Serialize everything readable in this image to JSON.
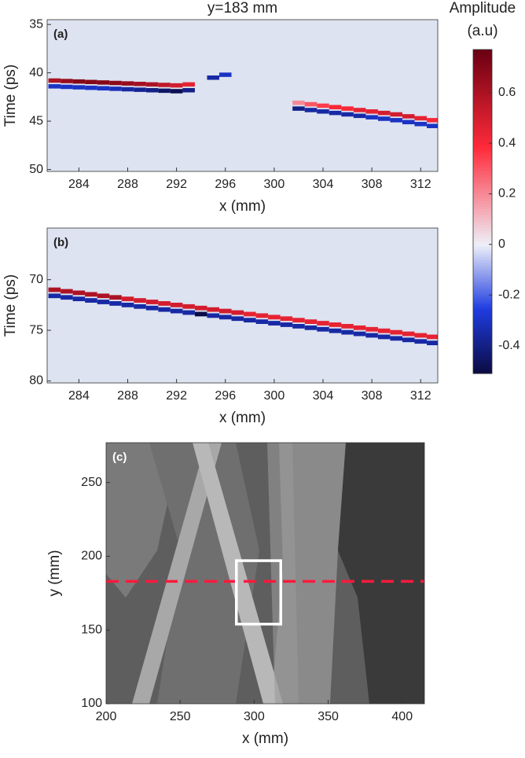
{
  "chart_data": [
    {
      "type": "heatmap",
      "title": "y=183 mm",
      "label": "(a)",
      "xlabel": "x (mm)",
      "ylabel": "Time (ps)",
      "xlim": [
        281.4,
        313.4
      ],
      "ylim": [
        34.5,
        50.2
      ],
      "y_reversed": true,
      "xticks": [
        284,
        288,
        292,
        296,
        300,
        304,
        308,
        312
      ],
      "yticks": [
        35,
        40,
        45,
        50
      ],
      "background_color": "#dde3f0",
      "x": [
        282,
        283,
        284,
        285,
        286,
        287,
        288,
        289,
        290,
        291,
        292,
        293,
        294,
        295,
        296,
        297,
        298,
        299,
        300,
        301,
        302,
        303,
        304,
        305,
        306,
        307,
        308,
        309,
        310,
        311,
        312,
        313
      ],
      "traces": [
        {
          "times": [
            40.8,
            40.85,
            40.9,
            40.95,
            41.0,
            41.05,
            41.1,
            41.15,
            41.2,
            41.25,
            41.3,
            41.2,
            null,
            null,
            null,
            null,
            null,
            null,
            null,
            null,
            43.1,
            43.25,
            43.4,
            43.55,
            43.7,
            43.85,
            44.0,
            44.15,
            44.3,
            44.5,
            44.7,
            44.9
          ],
          "amplitudes": [
            0.6,
            0.65,
            0.7,
            0.7,
            0.7,
            0.68,
            0.65,
            0.62,
            0.6,
            0.55,
            0.5,
            0.45,
            null,
            null,
            null,
            null,
            null,
            null,
            null,
            null,
            0.2,
            0.3,
            0.35,
            0.4,
            0.4,
            0.45,
            0.45,
            0.5,
            0.5,
            0.5,
            0.45,
            0.4
          ]
        },
        {
          "times": [
            41.4,
            41.45,
            41.5,
            41.55,
            41.6,
            41.65,
            41.7,
            41.75,
            41.8,
            41.85,
            41.9,
            41.8,
            null,
            40.5,
            40.2,
            null,
            null,
            null,
            null,
            null,
            43.7,
            43.85,
            44.0,
            44.15,
            44.3,
            44.45,
            44.6,
            44.75,
            44.9,
            45.1,
            45.3,
            45.5
          ],
          "amplitudes": [
            -0.3,
            -0.3,
            -0.3,
            -0.3,
            -0.3,
            -0.32,
            -0.35,
            -0.38,
            -0.4,
            -0.45,
            -0.48,
            -0.4,
            null,
            -0.35,
            -0.3,
            null,
            null,
            null,
            null,
            null,
            -0.4,
            -0.35,
            -0.35,
            -0.35,
            -0.35,
            -0.35,
            -0.3,
            -0.3,
            -0.3,
            -0.3,
            -0.3,
            -0.3
          ]
        }
      ]
    },
    {
      "type": "heatmap",
      "label": "(b)",
      "xlabel": "x (mm)",
      "ylabel": "Time (ps)",
      "xlim": [
        281.4,
        313.4
      ],
      "ylim": [
        64.9,
        80.2
      ],
      "y_reversed": true,
      "xticks": [
        284,
        288,
        292,
        296,
        300,
        304,
        308,
        312
      ],
      "yticks": [
        70,
        75,
        80
      ],
      "background_color": "#dde3f0",
      "x": [
        282,
        283,
        284,
        285,
        286,
        287,
        288,
        289,
        290,
        291,
        292,
        293,
        294,
        295,
        296,
        297,
        298,
        299,
        300,
        301,
        302,
        303,
        304,
        305,
        306,
        307,
        308,
        309,
        310,
        311,
        312,
        313
      ],
      "traces": [
        {
          "times": [
            71.0,
            71.15,
            71.3,
            71.45,
            71.6,
            71.75,
            71.9,
            72.05,
            72.2,
            72.35,
            72.5,
            72.65,
            72.8,
            72.95,
            73.1,
            73.25,
            73.4,
            73.55,
            73.7,
            73.85,
            74.0,
            74.15,
            74.3,
            74.45,
            74.6,
            74.75,
            74.9,
            75.05,
            75.2,
            75.35,
            75.5,
            75.65
          ],
          "amplitudes": [
            0.6,
            0.6,
            0.6,
            0.6,
            0.6,
            0.6,
            0.5,
            0.5,
            0.5,
            0.5,
            0.5,
            0.5,
            0.5,
            0.5,
            0.5,
            0.5,
            0.45,
            0.45,
            0.45,
            0.45,
            0.45,
            0.45,
            0.45,
            0.45,
            0.45,
            0.45,
            0.45,
            0.45,
            0.45,
            0.45,
            0.45,
            0.45
          ]
        },
        {
          "times": [
            71.6,
            71.75,
            71.9,
            72.05,
            72.2,
            72.35,
            72.5,
            72.65,
            72.8,
            72.95,
            73.1,
            73.25,
            73.4,
            73.55,
            73.7,
            73.85,
            74.0,
            74.15,
            74.3,
            74.45,
            74.6,
            74.75,
            74.9,
            75.05,
            75.2,
            75.35,
            75.5,
            75.65,
            75.8,
            75.95,
            76.1,
            76.25
          ],
          "amplitudes": [
            -0.35,
            -0.35,
            -0.35,
            -0.35,
            -0.35,
            -0.35,
            -0.35,
            -0.35,
            -0.35,
            -0.35,
            -0.35,
            -0.35,
            -0.5,
            -0.35,
            -0.35,
            -0.35,
            -0.35,
            -0.35,
            -0.35,
            -0.35,
            -0.35,
            -0.35,
            -0.35,
            -0.35,
            -0.35,
            -0.35,
            -0.35,
            -0.35,
            -0.35,
            -0.35,
            -0.35,
            -0.35
          ]
        }
      ]
    },
    {
      "type": "image",
      "label": "(c)",
      "xlabel": "x (mm)",
      "ylabel": "y (mm)",
      "xlim": [
        200,
        415
      ],
      "ylim": [
        100,
        277
      ],
      "xticks": [
        200,
        250,
        300,
        350,
        400
      ],
      "yticks": [
        100,
        150,
        200,
        250
      ],
      "hline": 183,
      "hline_color": "#ff1a3c",
      "box": {
        "x": [
          288,
          318
        ],
        "y": [
          154,
          197
        ]
      },
      "box_color": "#ffffff"
    }
  ],
  "colorbar": {
    "title": [
      "Amplitude",
      "(a.u)"
    ],
    "clim": [
      -0.51,
      0.77
    ],
    "ticks": [
      -0.4,
      -0.2,
      0,
      0.2,
      0.4,
      0.6
    ],
    "colors": [
      "#0a0a40",
      "#1f3ce0",
      "#eef0f8",
      "#ff2a3a",
      "#6a0012"
    ]
  }
}
